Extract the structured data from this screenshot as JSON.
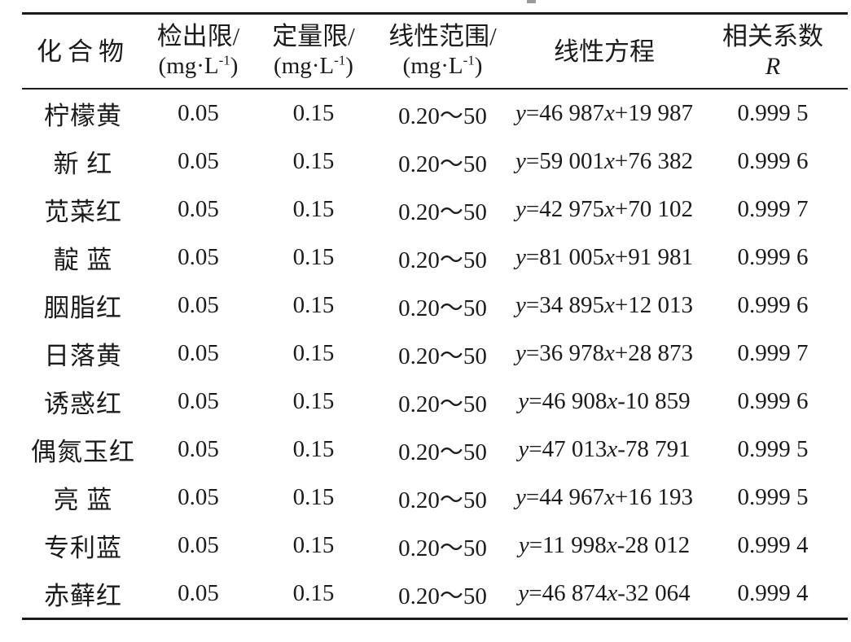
{
  "page": {
    "background": "#ffffff",
    "text_color": "#1b1b1b",
    "rule_color": "#1b1b1b"
  },
  "table": {
    "columns": [
      {
        "id": "compound",
        "title": "化合物"
      },
      {
        "id": "detection_limit",
        "title": "检出限/",
        "unit": "(mg·L-1)"
      },
      {
        "id": "quantification_limit",
        "title": "定量限/",
        "unit": "(mg·L-1)"
      },
      {
        "id": "linear_range",
        "title": "线性范围/",
        "unit": "(mg·L-1)"
      },
      {
        "id": "linear_equation",
        "title": "线性方程"
      },
      {
        "id": "correlation_coefficient",
        "title": "相关系数",
        "symbol": "R"
      }
    ],
    "rows": [
      {
        "compound": "柠檬黄",
        "detection_limit": "0.05",
        "quantification_limit": "0.15",
        "linear_range": "0.20～50",
        "linear_equation": "y=46 987x+19 987",
        "correlation_coefficient": "0.999 5"
      },
      {
        "compound": "新 红",
        "detection_limit": "0.05",
        "quantification_limit": "0.15",
        "linear_range": "0.20～50",
        "linear_equation": "y=59 001x+76 382",
        "correlation_coefficient": "0.999 6"
      },
      {
        "compound": "苋菜红",
        "detection_limit": "0.05",
        "quantification_limit": "0.15",
        "linear_range": "0.20～50",
        "linear_equation": "y=42 975x+70 102",
        "correlation_coefficient": "0.999 7"
      },
      {
        "compound": "靛 蓝",
        "detection_limit": "0.05",
        "quantification_limit": "0.15",
        "linear_range": "0.20～50",
        "linear_equation": "y=81 005x+91 981",
        "correlation_coefficient": "0.999 6"
      },
      {
        "compound": "胭脂红",
        "detection_limit": "0.05",
        "quantification_limit": "0.15",
        "linear_range": "0.20～50",
        "linear_equation": "y=34 895x+12 013",
        "correlation_coefficient": "0.999 6"
      },
      {
        "compound": "日落黄",
        "detection_limit": "0.05",
        "quantification_limit": "0.15",
        "linear_range": "0.20～50",
        "linear_equation": "y=36 978x+28 873",
        "correlation_coefficient": "0.999 7"
      },
      {
        "compound": "诱惑红",
        "detection_limit": "0.05",
        "quantification_limit": "0.15",
        "linear_range": "0.20～50",
        "linear_equation": "y=46 908x-10 859",
        "correlation_coefficient": "0.999 6"
      },
      {
        "compound": "偶氮玉红",
        "detection_limit": "0.05",
        "quantification_limit": "0.15",
        "linear_range": "0.20～50",
        "linear_equation": "y=47 013x-78 791",
        "correlation_coefficient": "0.999 5"
      },
      {
        "compound": "亮 蓝",
        "detection_limit": "0.05",
        "quantification_limit": "0.15",
        "linear_range": "0.20～50",
        "linear_equation": "y=44 967x+16 193",
        "correlation_coefficient": "0.999 5"
      },
      {
        "compound": "专利蓝",
        "detection_limit": "0.05",
        "quantification_limit": "0.15",
        "linear_range": "0.20～50",
        "linear_equation": "y=11 998x-28 012",
        "correlation_coefficient": "0.999 4"
      },
      {
        "compound": "赤藓红",
        "detection_limit": "0.05",
        "quantification_limit": "0.15",
        "linear_range": "0.20～50",
        "linear_equation": "y=46 874x-32 064",
        "correlation_coefficient": "0.999 4"
      }
    ]
  }
}
